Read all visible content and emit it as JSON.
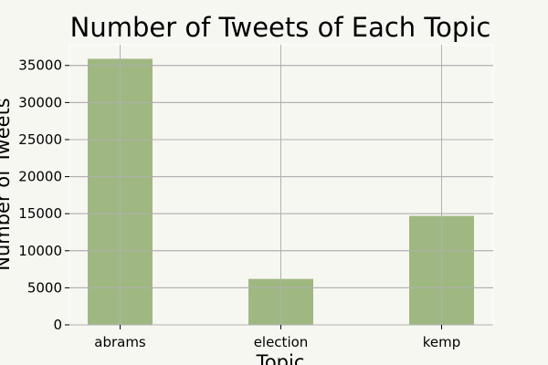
{
  "chart_data": {
    "type": "bar",
    "title": "Number of Tweets of Each Topic",
    "xlabel": "Topic",
    "ylabel": "Number of Tweets",
    "categories": [
      "abrams",
      "election",
      "kemp"
    ],
    "values": [
      35900,
      6200,
      14700
    ],
    "ylim": [
      0,
      37800
    ],
    "yticks": [
      0,
      5000,
      10000,
      15000,
      20000,
      25000,
      30000,
      35000
    ],
    "grid": true,
    "colors": {
      "bar": "#9fb882",
      "grid": "#b0b0b0",
      "plot_bg": "#f7f7f2",
      "page_bg": "#f7f7f2",
      "text": "#000000"
    }
  }
}
